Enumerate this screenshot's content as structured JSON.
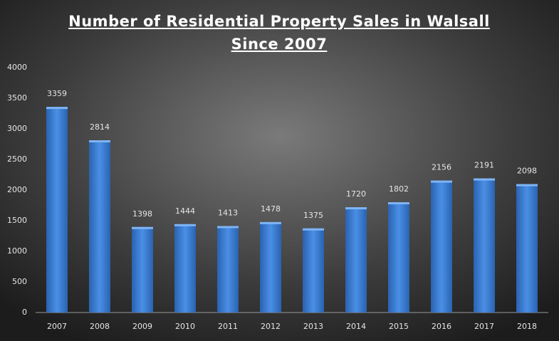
{
  "chart_data": {
    "type": "bar",
    "title": "Number of Residential Property Sales in Walsall Since 2007",
    "categories": [
      "2007",
      "2008",
      "2009",
      "2010",
      "2011",
      "2012",
      "2013",
      "2014",
      "2015",
      "2016",
      "2017",
      "2018"
    ],
    "values": [
      3359,
      2814,
      1398,
      1444,
      1413,
      1478,
      1375,
      1720,
      1802,
      2156,
      2191,
      2098
    ],
    "color": "#3a7fd5",
    "ylim": [
      0,
      4000
    ],
    "yticks": [
      0,
      500,
      1000,
      1500,
      2000,
      2500,
      3000,
      3500,
      4000
    ],
    "data_labels": true
  }
}
